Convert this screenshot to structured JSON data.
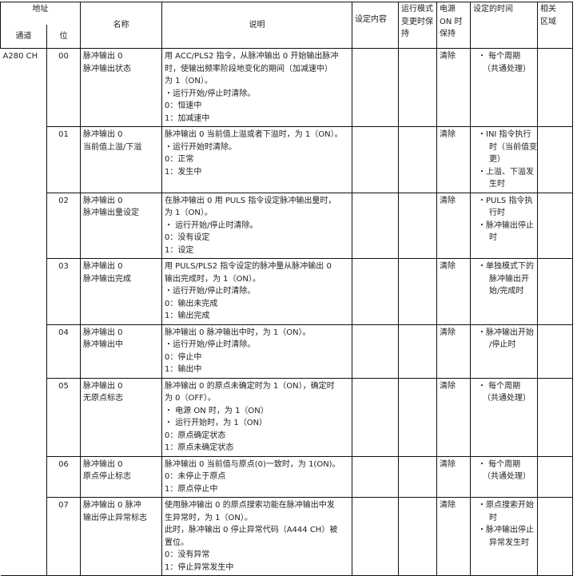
{
  "header": {
    "address": "地址",
    "channel": "通道",
    "bit": "位",
    "name": "名称",
    "description": "说明",
    "setting": "设定内容",
    "run_mode_hold": [
      "运行模式",
      "变更时保",
      "持"
    ],
    "power_on_hold": [
      "电源",
      "ON 时",
      "保持"
    ],
    "set_timing": "设定的时间",
    "related_area": [
      "相关",
      "区域"
    ]
  },
  "channel": "A280 CH",
  "rows": [
    {
      "bit": "00",
      "name": [
        "脉冲输出 0",
        "脉冲输出状态"
      ],
      "desc": [
        "用 ACC/PLS2 指令，从脉冲输出 0 开始输出脉冲",
        "时，使输出频率阶段地变化的期间（加减速中）",
        "为 1（ON）。",
        "・运行开始/停止时清除。",
        "0：恒速中",
        "1：加减速中"
      ],
      "power": "清除",
      "timing": [
        "・ 每个周期",
        "（共通处理）"
      ]
    },
    {
      "bit": "01",
      "name": [
        "脉冲输出 0",
        "当前值上溢/下溢"
      ],
      "desc": [
        "脉冲输出 0  当前值上溢或者下溢时，为 1（ON）。",
        "・运行开始时清除。",
        "0：正常",
        "1：发生中"
      ],
      "power": "清除",
      "timing": [
        "・INI 指令执行",
        "时（当前值变",
        "更）",
        "・上溢、下溢发",
        "生时"
      ]
    },
    {
      "bit": "02",
      "name": [
        "脉冲输出 0",
        "脉冲输出量设定"
      ],
      "desc": [
        "在脉冲输出 0 用 PULS 指令设定脉冲输出量时，",
        "为 1（ON）。",
        "・ 运行开始/停止时清除。",
        "0：没有设定",
        "1：设定"
      ],
      "power": "清除",
      "timing": [
        "・PULS 指令执",
        "行时",
        "・脉冲输出停止",
        "时"
      ]
    },
    {
      "bit": "03",
      "name": [
        "脉冲输出 0",
        "脉冲输出完成"
      ],
      "desc": [
        "用 PULS/PLS2 指令设定的脉冲量从脉冲输出 0",
        "输出完成时，为 1（ON）。",
        "・运行开始/停止时清除。",
        "0：输出未完成",
        "1：输出完成"
      ],
      "power": "清除",
      "timing": [
        "・单独模式下的",
        "脉冲输出开",
        "始/完成时"
      ]
    },
    {
      "bit": "04",
      "name": [
        "脉冲输出 0",
        "脉冲输出中"
      ],
      "desc": [
        "脉冲输出 0 脉冲输出中时，为 1（ON）。",
        "・运行开始/停止时清除。",
        "0：停止中",
        "1：输出中"
      ],
      "power": "清除",
      "timing": [
        "・脉冲输出开始",
        "/停止时"
      ]
    },
    {
      "bit": "05",
      "name": [
        "脉冲输出 0",
        "无原点标志"
      ],
      "desc": [
        "脉冲输出 0 的原点未确定时为 1（ON），确定时",
        "为 0（OFF）。",
        "・ 电源 ON 时，为 1（ON）",
        "・ 运行开始时，为 1（ON）",
        "0：原点确定状态",
        "1：原点未确定状态"
      ],
      "power": "清除",
      "timing": [
        "・ 每个周期",
        "（共通处理）"
      ]
    },
    {
      "bit": "06",
      "name": [
        "脉冲输出 0",
        "原点停止标志"
      ],
      "desc": [
        "脉冲输出 0  当前值与原点(0)一致时，为 1(ON)。",
        "0：未停止于原点",
        "1：原点停止中"
      ],
      "power": "清除",
      "timing": [
        "・ 每个周期",
        "（共通处理）"
      ]
    },
    {
      "bit": "07",
      "name": [
        "脉冲输出 0  脉冲",
        "输出停止异常标志"
      ],
      "desc": [
        "使用脉冲输出 0 的原点搜索功能在脉冲输出中发",
        "生异常时，为 1（ON）。",
        "此时，脉冲输出 0  停止异常代码（A444 CH）被",
        "置位。",
        "0：没有异常",
        "1：停止异常发生中"
      ],
      "power": "清除",
      "timing": [
        "・原点搜索开始",
        "时",
        "・脉冲输出停止",
        "异常发生时"
      ]
    }
  ]
}
